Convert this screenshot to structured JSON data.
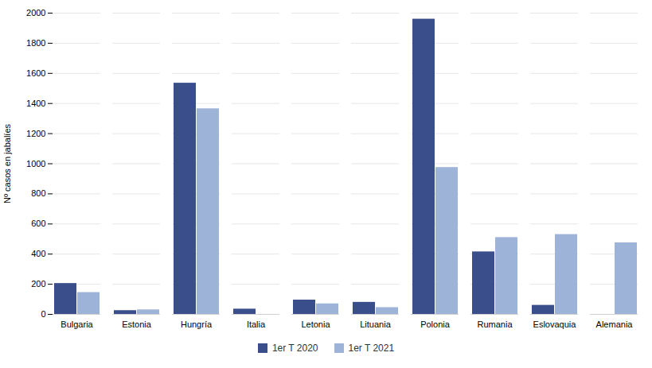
{
  "chart_data": {
    "type": "bar",
    "categories": [
      "Bulgaria",
      "Estonia",
      "Hungría",
      "Italia",
      "Letonia",
      "Lituania",
      "Polonia",
      "Rumania",
      "Eslovaquia",
      "Alemania"
    ],
    "series": [
      {
        "name": "1er T 2020",
        "color": "#3a4e8c",
        "values": [
          205,
          25,
          1535,
          35,
          95,
          80,
          1960,
          415,
          60,
          0
        ]
      },
      {
        "name": "1er T 2021",
        "color": "#9db3d8",
        "values": [
          145,
          30,
          1365,
          0,
          70,
          45,
          975,
          510,
          530,
          475
        ]
      }
    ],
    "ylabel": "Nº casos en jabalíes",
    "ylim": [
      0,
      2000
    ],
    "yticks": [
      0,
      200,
      400,
      600,
      800,
      1000,
      1200,
      1400,
      1600,
      1800,
      2000
    ],
    "grid": true,
    "legend": "bottom"
  }
}
